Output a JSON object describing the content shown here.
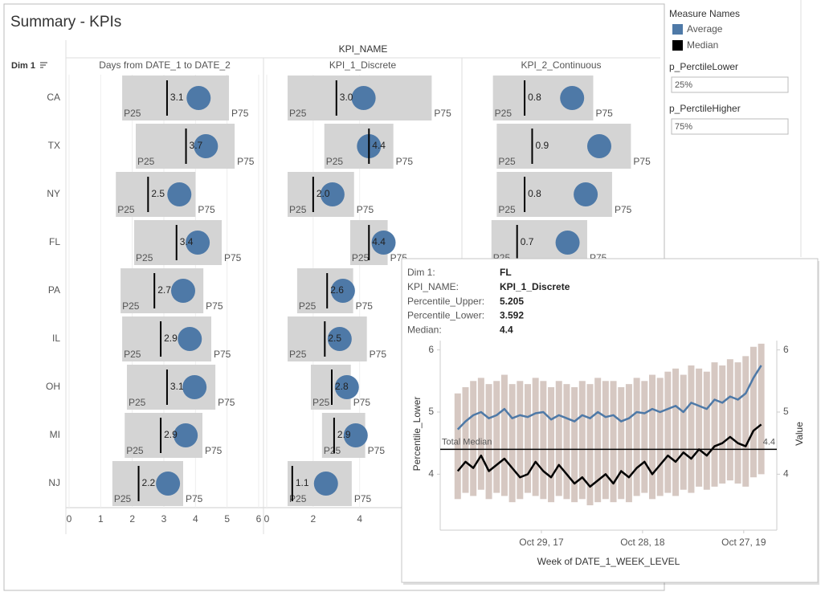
{
  "header": {
    "title": "Summary - KPIs"
  },
  "legend": {
    "title": "Measure Names",
    "items": [
      {
        "label": "Average",
        "color": "#4e79a7"
      },
      {
        "label": "Median",
        "color": "#000000"
      }
    ]
  },
  "parameters": [
    {
      "label": "p_PerctileLower",
      "value": "25%"
    },
    {
      "label": "p_PerctileHigher",
      "value": "75%"
    }
  ],
  "kpi_table": {
    "column_header": "KPI_NAME",
    "row_header": "Dim 1",
    "rows": [
      "CA",
      "TX",
      "NY",
      "FL",
      "PA",
      "IL",
      "OH",
      "MI",
      "NJ"
    ],
    "p25_label": "P25",
    "p75_label": "P75",
    "panels": [
      {
        "name": "Days from DATE_1 to DATE_2",
        "xlim": [
          0,
          6
        ],
        "xticks": [
          0,
          1,
          2,
          3,
          4,
          5,
          6
        ],
        "p25": [
          1.68,
          2.11,
          1.48,
          2.06,
          1.63,
          1.68,
          1.83,
          1.76,
          1.37
        ],
        "p75": [
          5.06,
          5.24,
          4.0,
          4.83,
          4.25,
          4.5,
          4.63,
          4.22,
          3.61
        ],
        "median": [
          3.1,
          3.7,
          2.5,
          3.4,
          2.7,
          2.9,
          3.1,
          2.9,
          2.2
        ],
        "average": [
          4.1,
          4.33,
          3.49,
          4.07,
          3.61,
          3.82,
          3.97,
          3.69,
          3.13
        ]
      },
      {
        "name": "KPI_1_Discrete",
        "xlim": [
          0,
          8.4
        ],
        "xticks": [
          0,
          2,
          4
        ],
        "p25": [
          0.9,
          2.48,
          0.9,
          3.592,
          1.31,
          0.9,
          1.9,
          2.38,
          0.9
        ],
        "p75": [
          7.1,
          5.45,
          3.76,
          5.205,
          3.72,
          4.31,
          3.62,
          4.24,
          3.66
        ],
        "median": [
          3.0,
          4.4,
          2.0,
          4.4,
          2.6,
          2.5,
          2.8,
          2.9,
          1.1
        ],
        "median_labels": [
          "3.0",
          "4.4",
          "2.0",
          "4.4",
          "2.6",
          "2.5",
          "2.8",
          "2.9",
          "1.1"
        ],
        "average": [
          4.17,
          4.4,
          2.83,
          5.03,
          3.28,
          3.14,
          3.45,
          3.83,
          2.55
        ]
      },
      {
        "name": "KPI_2_Continuous",
        "xlim": [
          0,
          2.6
        ],
        "p25": [
          0.38,
          0.43,
          0.43,
          0.36,
          null,
          null,
          null,
          null,
          null
        ],
        "p75": [
          1.71,
          2.21,
          1.96,
          1.63,
          null,
          null,
          null,
          null,
          null
        ],
        "median": [
          0.8,
          0.9,
          0.8,
          0.7,
          null,
          null,
          null,
          null,
          null
        ],
        "average": [
          1.43,
          1.79,
          1.61,
          1.37,
          null,
          null,
          null,
          null,
          null
        ]
      }
    ]
  },
  "tooltip": {
    "fields": [
      {
        "label": "Dim 1:",
        "value": "FL"
      },
      {
        "label": "KPI_NAME:",
        "value": "KPI_1_Discrete"
      },
      {
        "label": "Percentile_Upper:",
        "value": 5.205
      },
      {
        "label": "Percentile_Lower:",
        "value": 3.592
      },
      {
        "label": "Median:",
        "value": 4.4
      }
    ],
    "chart": {
      "type": "line",
      "x": [
        "2017-01-01",
        "2017-01-29",
        "2017-02-26",
        "2017-03-26",
        "2017-04-23",
        "2017-05-21",
        "2017-06-18",
        "2017-07-16",
        "2017-08-13",
        "2017-09-10",
        "2017-10-08",
        "2017-11-05",
        "2017-12-03",
        "2017-12-31",
        "2018-01-28",
        "2018-02-25",
        "2018-03-25",
        "2018-04-22",
        "2018-05-20",
        "2018-06-17",
        "2018-07-15",
        "2018-08-12",
        "2018-09-09",
        "2018-10-07",
        "2018-11-04",
        "2018-12-02",
        "2018-12-30",
        "2019-01-27",
        "2019-02-24",
        "2019-03-24",
        "2019-04-21",
        "2019-05-19",
        "2019-06-16",
        "2019-07-14",
        "2019-08-11",
        "2019-09-08",
        "2019-10-06",
        "2019-11-03",
        "2019-12-01",
        "2019-12-29"
      ],
      "xlim": [
        "2016-10-30",
        "2020-02-23"
      ],
      "xticks": [
        {
          "value": "2017-10-29",
          "label": "Oct 29, 17"
        },
        {
          "value": "2018-10-28",
          "label": "Oct 28, 18"
        },
        {
          "value": "2019-10-27",
          "label": "Oct 27, 19"
        }
      ],
      "xlabel": "Week of DATE_1_WEEK_LEVEL",
      "ylabel": "Percentile_Lower",
      "y2label": "Value",
      "ylim": [
        3.1,
        6.15
      ],
      "yticks": [
        4,
        5,
        6
      ],
      "y2lim": [
        3.1,
        6.15
      ],
      "y2ticks": [
        4,
        5,
        6
      ],
      "band": {
        "color": "#c8b5ae",
        "lower": [
          3.6,
          3.7,
          3.65,
          3.75,
          3.6,
          3.7,
          3.65,
          3.55,
          3.6,
          3.7,
          3.65,
          3.6,
          3.55,
          3.65,
          3.6,
          3.55,
          3.6,
          3.5,
          3.55,
          3.6,
          3.55,
          3.6,
          3.55,
          3.65,
          3.7,
          3.6,
          3.65,
          3.7,
          3.65,
          3.75,
          3.7,
          3.8,
          3.75,
          3.8,
          3.85,
          3.9,
          3.85,
          3.8,
          3.95,
          4.0
        ],
        "upper": [
          5.3,
          5.4,
          5.5,
          5.55,
          5.45,
          5.5,
          5.6,
          5.45,
          5.5,
          5.45,
          5.55,
          5.5,
          5.4,
          5.5,
          5.45,
          5.4,
          5.5,
          5.45,
          5.55,
          5.5,
          5.5,
          5.4,
          5.45,
          5.55,
          5.5,
          5.6,
          5.55,
          5.65,
          5.7,
          5.6,
          5.75,
          5.7,
          5.65,
          5.8,
          5.75,
          5.85,
          5.8,
          5.9,
          6.05,
          6.1
        ]
      },
      "series": [
        {
          "color": "#4e79a7",
          "values": [
            4.72,
            4.85,
            4.95,
            5.0,
            4.9,
            4.95,
            5.05,
            4.9,
            4.95,
            4.92,
            4.98,
            5.0,
            4.88,
            4.95,
            4.9,
            4.85,
            4.95,
            4.9,
            5.0,
            4.92,
            4.95,
            4.85,
            4.9,
            5.0,
            4.98,
            5.05,
            5.0,
            5.05,
            5.1,
            5.0,
            5.15,
            5.1,
            5.05,
            5.2,
            5.15,
            5.25,
            5.2,
            5.3,
            5.55,
            5.75
          ]
        },
        {
          "color": "#000000",
          "axis": "y2",
          "values": [
            4.05,
            4.2,
            4.1,
            4.3,
            4.05,
            4.15,
            4.25,
            4.1,
            3.95,
            4.0,
            4.2,
            4.05,
            3.95,
            4.15,
            4.0,
            3.85,
            3.95,
            3.8,
            3.9,
            4.0,
            3.85,
            4.05,
            3.95,
            4.1,
            4.2,
            4.0,
            4.15,
            4.3,
            4.2,
            4.35,
            4.25,
            4.4,
            4.3,
            4.45,
            4.5,
            4.6,
            4.5,
            4.45,
            4.7,
            4.8
          ]
        }
      ],
      "reference_line": {
        "label": "Total Median",
        "value": 4.4
      }
    }
  }
}
